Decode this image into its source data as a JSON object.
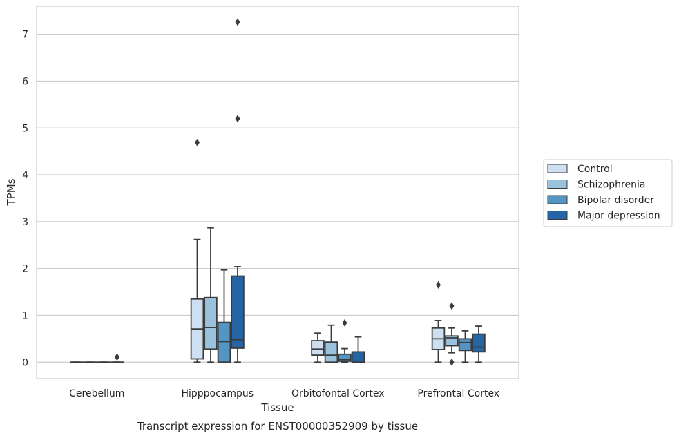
{
  "caption": "Transcript expression for ENST00000352909 by tissue",
  "chart_data": {
    "type": "box",
    "title": "",
    "xlabel": "Tissue",
    "ylabel": "TPMs",
    "ylim": [
      -0.35,
      7.6
    ],
    "yticks": [
      0,
      1,
      2,
      3,
      4,
      5,
      6,
      7
    ],
    "grid": "horizontal",
    "legend_position": "right",
    "categories": [
      "Cerebellum",
      "Hipppocampus",
      "Orbitofontal Cortex",
      "Prefrontal Cortex"
    ],
    "series": [
      {
        "name": "Control",
        "color": "#cddff0",
        "boxes": [
          {
            "whislo": 0,
            "q1": 0,
            "med": 0,
            "q3": 0,
            "whishi": 0,
            "fliers": []
          },
          {
            "whislo": 0,
            "q1": 0.07,
            "med": 0.71,
            "q3": 1.35,
            "whishi": 2.62,
            "fliers": [
              4.69
            ]
          },
          {
            "whislo": 0,
            "q1": 0.15,
            "med": 0.28,
            "q3": 0.46,
            "whishi": 0.62,
            "fliers": []
          },
          {
            "whislo": 0,
            "q1": 0.27,
            "med": 0.5,
            "q3": 0.73,
            "whishi": 0.89,
            "fliers": [
              1.65
            ]
          }
        ]
      },
      {
        "name": "Schizophrenia",
        "color": "#9ac2dc",
        "boxes": [
          {
            "whislo": 0,
            "q1": 0,
            "med": 0,
            "q3": 0,
            "whishi": 0,
            "fliers": []
          },
          {
            "whislo": 0,
            "q1": 0.28,
            "med": 0.74,
            "q3": 1.38,
            "whishi": 2.87,
            "fliers": []
          },
          {
            "whislo": 0,
            "q1": 0,
            "med": 0.15,
            "q3": 0.43,
            "whishi": 0.79,
            "fliers": []
          },
          {
            "whislo": 0.2,
            "q1": 0.35,
            "med": 0.52,
            "q3": 0.56,
            "whishi": 0.73,
            "fliers": [
              1.2,
              0
            ]
          }
        ]
      },
      {
        "name": "Bipolar disorder",
        "color": "#5495c4",
        "boxes": [
          {
            "whislo": 0,
            "q1": 0,
            "med": 0,
            "q3": 0,
            "whishi": 0,
            "fliers": []
          },
          {
            "whislo": 0,
            "q1": 0,
            "med": 0.44,
            "q3": 0.85,
            "whishi": 1.97,
            "fliers": []
          },
          {
            "whislo": 0,
            "q1": 0.02,
            "med": 0.05,
            "q3": 0.17,
            "whishi": 0.29,
            "fliers": [
              0.84
            ]
          },
          {
            "whislo": 0,
            "q1": 0.25,
            "med": 0.42,
            "q3": 0.5,
            "whishi": 0.67,
            "fliers": []
          }
        ]
      },
      {
        "name": "Major depression",
        "color": "#2565a3",
        "boxes": [
          {
            "whislo": 0,
            "q1": 0,
            "med": 0,
            "q3": 0,
            "whishi": 0,
            "fliers": [
              0.11
            ]
          },
          {
            "whislo": 0,
            "q1": 0.3,
            "med": 0.48,
            "q3": 1.84,
            "whishi": 2.04,
            "fliers": [
              5.2,
              7.26
            ]
          },
          {
            "whislo": 0,
            "q1": 0,
            "med": 0,
            "q3": 0.22,
            "whishi": 0.54,
            "fliers": []
          },
          {
            "whislo": 0,
            "q1": 0.22,
            "med": 0.32,
            "q3": 0.6,
            "whishi": 0.77,
            "fliers": []
          }
        ]
      }
    ]
  }
}
